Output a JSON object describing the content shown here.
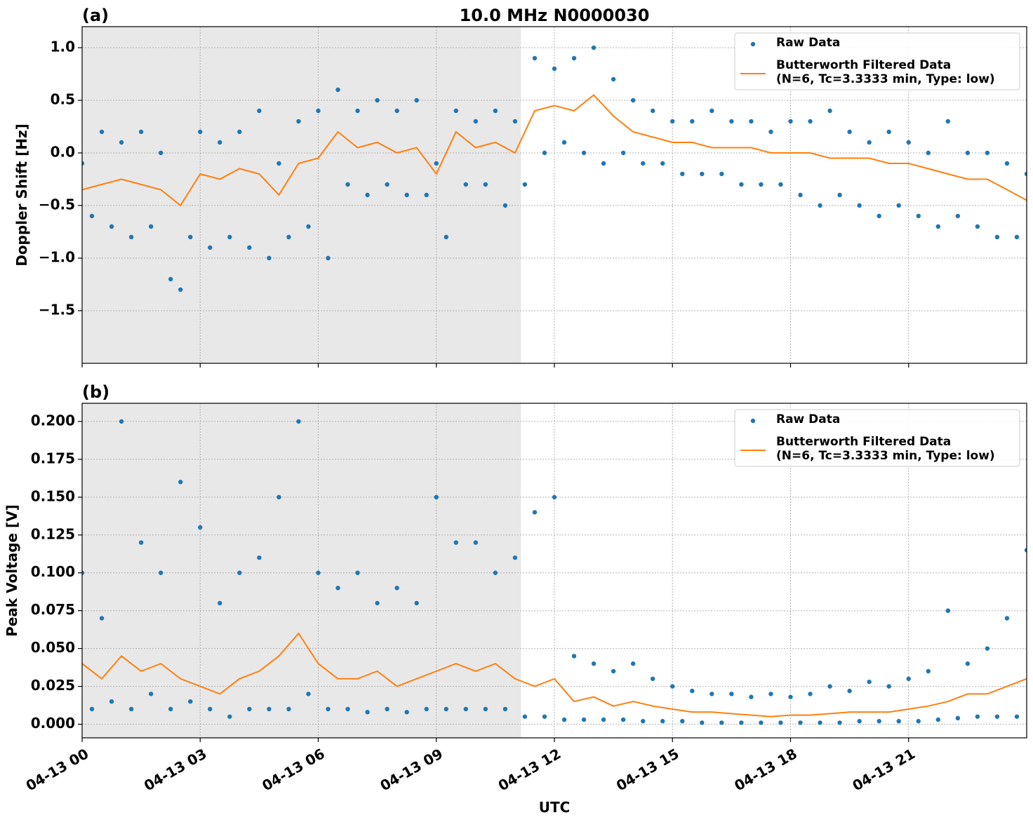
{
  "chart_data": [
    {
      "type": "line",
      "panel_label": "(a)",
      "title": "10.0 MHz N0000030",
      "ylabel": "Doppler Shift [Hz]",
      "xlim": [
        0,
        24
      ],
      "ylim": [
        -2,
        1.2
      ],
      "yticks": [
        {
          "value": -1.5,
          "label": "−1.5"
        },
        {
          "value": -1,
          "label": "−1.0"
        },
        {
          "value": -0.5,
          "label": "−0.5"
        },
        {
          "value": 0,
          "label": "0.0"
        },
        0.5,
        {
          "value": 1,
          "label": "1.0"
        }
      ],
      "grid": true,
      "legend": "upper right",
      "shaded_span": [
        0,
        11.15
      ],
      "shade_color": "#e8e8e8",
      "series": [
        {
          "name": "Raw Data",
          "style": "points",
          "color": "#1f77b4",
          "x": [
            0,
            0.25,
            0.5,
            0.75,
            1,
            1.25,
            1.5,
            1.75,
            2,
            2.25,
            2.5,
            2.75,
            3,
            3.25,
            3.5,
            3.75,
            4,
            4.25,
            4.5,
            4.75,
            5,
            5.25,
            5.5,
            5.75,
            6,
            6.25,
            6.5,
            6.75,
            7,
            7.25,
            7.5,
            7.75,
            8,
            8.25,
            8.5,
            8.75,
            9,
            9.25,
            9.5,
            9.75,
            10,
            10.25,
            10.5,
            10.75,
            11,
            11.25,
            11.5,
            11.75,
            12,
            12.25,
            12.5,
            12.75,
            13,
            13.25,
            13.5,
            13.75,
            14,
            14.25,
            14.5,
            14.75,
            15,
            15.25,
            15.5,
            15.75,
            16,
            16.25,
            16.5,
            16.75,
            17,
            17.25,
            17.5,
            17.75,
            18,
            18.25,
            18.5,
            18.75,
            19,
            19.25,
            19.5,
            19.75,
            20,
            20.25,
            20.5,
            20.75,
            21,
            21.25,
            21.5,
            21.75,
            22,
            22.25,
            22.5,
            22.75,
            23,
            23.25,
            23.5,
            23.75,
            24
          ],
          "values": [
            -0.1,
            -0.6,
            0.2,
            -0.7,
            0.1,
            -0.8,
            0.2,
            -0.7,
            0.0,
            -1.2,
            -1.3,
            -0.8,
            0.2,
            -0.9,
            0.1,
            -0.8,
            0.2,
            -0.9,
            0.4,
            -1.0,
            -0.1,
            -0.8,
            0.3,
            -0.7,
            0.4,
            -1.0,
            0.6,
            -0.3,
            0.4,
            -0.4,
            0.5,
            -0.3,
            0.4,
            -0.4,
            0.5,
            -0.4,
            -0.1,
            -0.8,
            0.4,
            -0.3,
            0.3,
            -0.3,
            0.4,
            -0.5,
            0.3,
            -0.3,
            0.9,
            0.0,
            0.8,
            0.1,
            0.9,
            0.0,
            1.0,
            -0.1,
            0.7,
            0.0,
            0.5,
            -0.1,
            0.4,
            -0.1,
            0.3,
            -0.2,
            0.3,
            -0.2,
            0.4,
            -0.2,
            0.3,
            -0.3,
            0.3,
            -0.3,
            0.2,
            -0.3,
            0.3,
            -0.4,
            0.3,
            -0.5,
            0.4,
            -0.4,
            0.2,
            -0.5,
            0.1,
            -0.6,
            0.2,
            -0.5,
            0.1,
            -0.6,
            0.0,
            -0.7,
            0.3,
            -0.6,
            0.0,
            -0.7,
            0.0,
            -0.8,
            -0.1,
            -0.8,
            -0.2
          ]
        },
        {
          "name": "Butterworth Filtered Data\n(N=6, Tc=3.3333 min, Type: low)",
          "style": "line",
          "color": "#ff7f0e",
          "x": [
            0,
            0.5,
            1,
            1.5,
            2,
            2.5,
            3,
            3.5,
            4,
            4.5,
            5,
            5.5,
            6,
            6.5,
            7,
            7.5,
            8,
            8.5,
            9,
            9.5,
            10,
            10.5,
            11,
            11.5,
            12,
            12.5,
            13,
            13.5,
            14,
            14.5,
            15,
            15.5,
            16,
            16.5,
            17,
            17.5,
            18,
            18.5,
            19,
            19.5,
            20,
            20.5,
            21,
            21.5,
            22,
            22.5,
            23,
            23.5,
            24
          ],
          "values": [
            -0.35,
            -0.3,
            -0.25,
            -0.3,
            -0.35,
            -0.5,
            -0.2,
            -0.25,
            -0.15,
            -0.2,
            -0.4,
            -0.1,
            -0.05,
            0.2,
            0.05,
            0.1,
            0.0,
            0.05,
            -0.2,
            0.2,
            0.05,
            0.1,
            0.0,
            0.4,
            0.45,
            0.4,
            0.55,
            0.35,
            0.2,
            0.15,
            0.1,
            0.1,
            0.05,
            0.05,
            0.05,
            0.0,
            0.0,
            0.0,
            -0.05,
            -0.05,
            -0.05,
            -0.1,
            -0.1,
            -0.15,
            -0.2,
            -0.25,
            -0.25,
            -0.35,
            -0.45
          ]
        }
      ]
    },
    {
      "type": "line",
      "panel_label": "(b)",
      "ylabel": "Peak Voltage [V]",
      "xlabel": "UTC",
      "xlim": [
        0,
        24
      ],
      "ylim": [
        -0.009,
        0.212
      ],
      "xticks": [
        {
          "value": 0,
          "label": "04-13 00"
        },
        {
          "value": 3,
          "label": "04-13 03"
        },
        {
          "value": 6,
          "label": "04-13 06"
        },
        {
          "value": 9,
          "label": "04-13 09"
        },
        {
          "value": 12,
          "label": "04-13 12"
        },
        {
          "value": 15,
          "label": "04-13 15"
        },
        {
          "value": 18,
          "label": "04-13 18"
        },
        {
          "value": 21,
          "label": "04-13 21"
        }
      ],
      "yticks": [
        {
          "value": 0,
          "label": "0.000"
        },
        {
          "value": 0.025,
          "label": "0.025"
        },
        {
          "value": 0.05,
          "label": "0.050"
        },
        {
          "value": 0.075,
          "label": "0.075"
        },
        {
          "value": 0.1,
          "label": "0.100"
        },
        {
          "value": 0.125,
          "label": "0.125"
        },
        {
          "value": 0.15,
          "label": "0.150"
        },
        {
          "value": 0.175,
          "label": "0.175"
        },
        {
          "value": 0.2,
          "label": "0.200"
        }
      ],
      "grid": true,
      "legend": "upper right",
      "shaded_span": [
        0,
        11.15
      ],
      "shade_color": "#e8e8e8",
      "series": [
        {
          "name": "Raw Data",
          "style": "points",
          "color": "#1f77b4",
          "x": [
            0,
            0.25,
            0.5,
            0.75,
            1,
            1.25,
            1.5,
            1.75,
            2,
            2.25,
            2.5,
            2.75,
            3,
            3.25,
            3.5,
            3.75,
            4,
            4.25,
            4.5,
            4.75,
            5,
            5.25,
            5.5,
            5.75,
            6,
            6.25,
            6.5,
            6.75,
            7,
            7.25,
            7.5,
            7.75,
            8,
            8.25,
            8.5,
            8.75,
            9,
            9.25,
            9.5,
            9.75,
            10,
            10.25,
            10.5,
            10.75,
            11,
            11.25,
            11.5,
            11.75,
            12,
            12.25,
            12.5,
            12.75,
            13,
            13.25,
            13.5,
            13.75,
            14,
            14.25,
            14.5,
            14.75,
            15,
            15.25,
            15.5,
            15.75,
            16,
            16.25,
            16.5,
            16.75,
            17,
            17.25,
            17.5,
            17.75,
            18,
            18.25,
            18.5,
            18.75,
            19,
            19.25,
            19.5,
            19.75,
            20,
            20.25,
            20.5,
            20.75,
            21,
            21.25,
            21.5,
            21.75,
            22,
            22.25,
            22.5,
            22.75,
            23,
            23.25,
            23.5,
            23.75,
            24
          ],
          "values": [
            0.1,
            0.01,
            0.07,
            0.015,
            0.2,
            0.01,
            0.12,
            0.02,
            0.1,
            0.01,
            0.16,
            0.015,
            0.13,
            0.01,
            0.08,
            0.005,
            0.1,
            0.01,
            0.11,
            0.01,
            0.15,
            0.01,
            0.2,
            0.02,
            0.1,
            0.01,
            0.09,
            0.01,
            0.1,
            0.008,
            0.08,
            0.01,
            0.09,
            0.008,
            0.08,
            0.01,
            0.15,
            0.01,
            0.12,
            0.01,
            0.12,
            0.01,
            0.1,
            0.01,
            0.11,
            0.005,
            0.14,
            0.005,
            0.15,
            0.003,
            0.045,
            0.003,
            0.04,
            0.003,
            0.035,
            0.003,
            0.04,
            0.002,
            0.03,
            0.002,
            0.025,
            0.002,
            0.022,
            0.001,
            0.02,
            0.001,
            0.02,
            0.001,
            0.018,
            0.001,
            0.02,
            0.001,
            0.018,
            0.001,
            0.02,
            0.001,
            0.025,
            0.001,
            0.022,
            0.002,
            0.028,
            0.002,
            0.025,
            0.002,
            0.03,
            0.002,
            0.035,
            0.003,
            0.075,
            0.004,
            0.04,
            0.005,
            0.05,
            0.005,
            0.07,
            0.005,
            0.115
          ]
        },
        {
          "name": "Butterworth Filtered Data\n(N=6, Tc=3.3333 min, Type: low)",
          "style": "line",
          "color": "#ff7f0e",
          "x": [
            0,
            0.5,
            1,
            1.5,
            2,
            2.5,
            3,
            3.5,
            4,
            4.5,
            5,
            5.5,
            6,
            6.5,
            7,
            7.5,
            8,
            8.5,
            9,
            9.5,
            10,
            10.5,
            11,
            11.5,
            12,
            12.5,
            13,
            13.5,
            14,
            14.5,
            15,
            15.5,
            16,
            16.5,
            17,
            17.5,
            18,
            18.5,
            19,
            19.5,
            20,
            20.5,
            21,
            21.5,
            22,
            22.5,
            23,
            23.5,
            24
          ],
          "values": [
            0.04,
            0.03,
            0.045,
            0.035,
            0.04,
            0.03,
            0.025,
            0.02,
            0.03,
            0.035,
            0.045,
            0.06,
            0.04,
            0.03,
            0.03,
            0.035,
            0.025,
            0.03,
            0.035,
            0.04,
            0.035,
            0.04,
            0.03,
            0.025,
            0.03,
            0.015,
            0.018,
            0.012,
            0.015,
            0.012,
            0.01,
            0.008,
            0.008,
            0.007,
            0.006,
            0.005,
            0.006,
            0.006,
            0.007,
            0.008,
            0.008,
            0.008,
            0.01,
            0.012,
            0.015,
            0.02,
            0.02,
            0.025,
            0.03
          ]
        }
      ]
    }
  ]
}
